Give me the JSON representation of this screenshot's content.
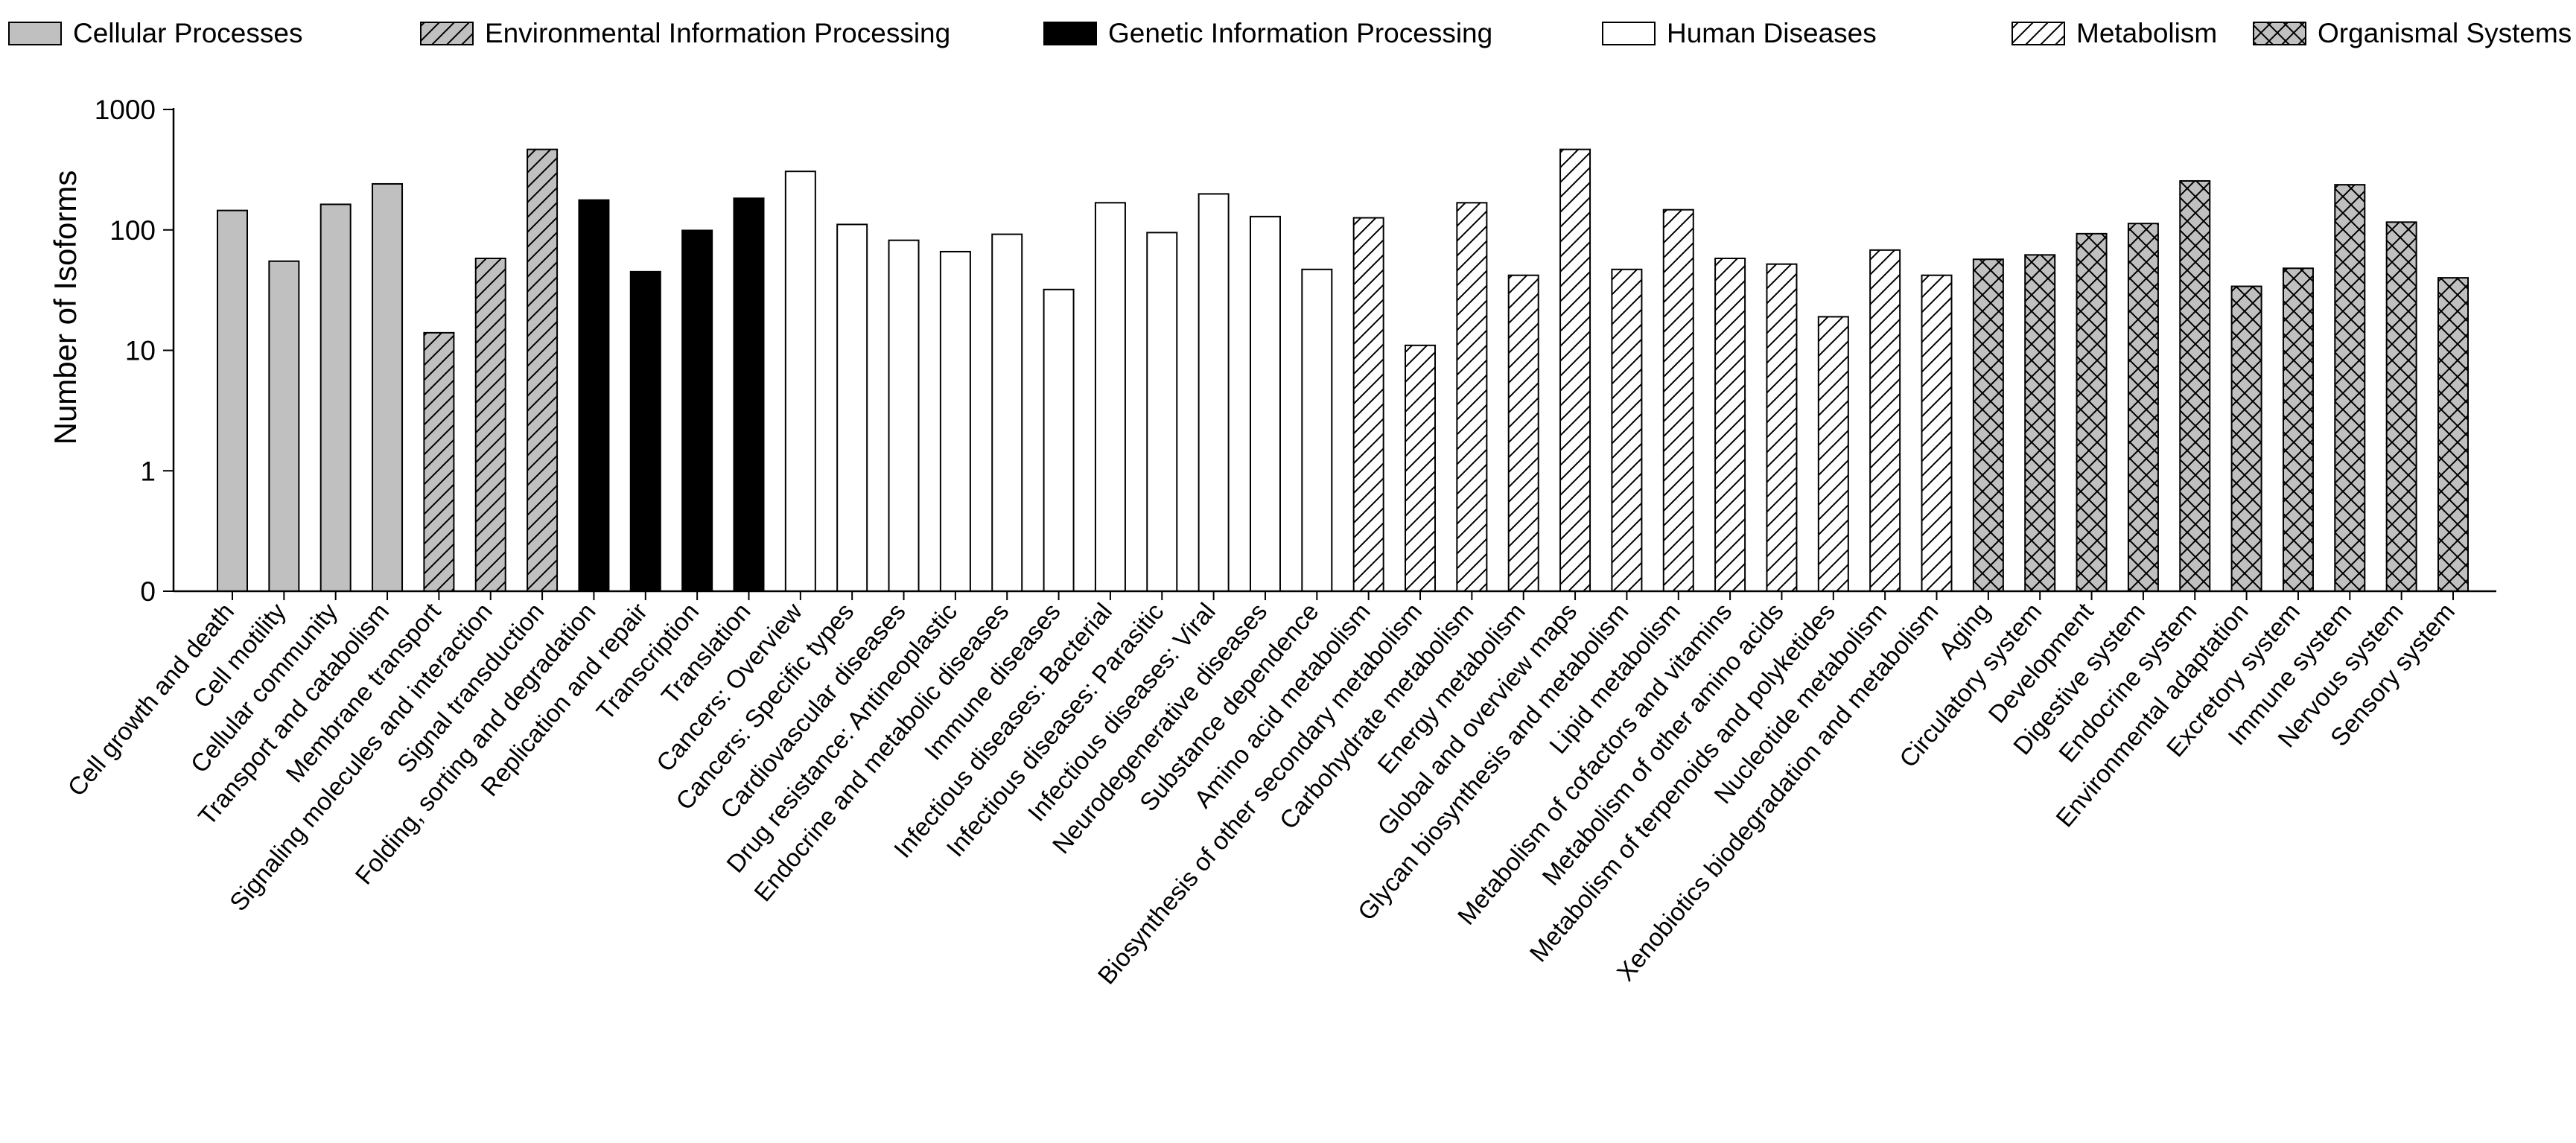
{
  "chart_data": {
    "type": "bar",
    "title": "",
    "xlabel": "",
    "ylabel": "Number of Isoforms",
    "yscale": "log",
    "ylim": [
      0,
      1000
    ],
    "yticks": [
      {
        "value": 1000,
        "label": "1000"
      },
      {
        "value": 100,
        "label": "100"
      },
      {
        "value": 10,
        "label": "10"
      },
      {
        "value": 1,
        "label": "1"
      },
      {
        "value": 0,
        "label": "0"
      }
    ],
    "legend_position": "top",
    "groups": [
      {
        "name": "Cellular Processes",
        "style": "solid",
        "color": "#c0c0c0"
      },
      {
        "name": "Environmental Information Processing",
        "style": "hatch",
        "color": "#c0c0c0"
      },
      {
        "name": "Genetic Information Processing",
        "style": "solid",
        "color": "#000000"
      },
      {
        "name": "Human Diseases",
        "style": "solid",
        "color": "#ffffff"
      },
      {
        "name": "Metabolism",
        "style": "hatch",
        "color": "#ffffff"
      },
      {
        "name": "Organismal Systems",
        "style": "crosshatch",
        "color": "#c0c0c0"
      }
    ],
    "categories": [
      {
        "label": "Cell growth and death",
        "group": 0,
        "value": 145
      },
      {
        "label": "Cell motility",
        "group": 0,
        "value": 55
      },
      {
        "label": "Cellular community",
        "group": 0,
        "value": 163
      },
      {
        "label": "Transport and catabolism",
        "group": 0,
        "value": 241
      },
      {
        "label": "Membrane transport",
        "group": 1,
        "value": 14
      },
      {
        "label": "Signaling molecules and interaction",
        "group": 1,
        "value": 58
      },
      {
        "label": "Signal transduction",
        "group": 1,
        "value": 466
      },
      {
        "label": "Folding, sorting and degradation",
        "group": 2,
        "value": 177
      },
      {
        "label": "Replication and repair",
        "group": 2,
        "value": 45
      },
      {
        "label": "Transcription",
        "group": 2,
        "value": 99
      },
      {
        "label": "Translation",
        "group": 2,
        "value": 183
      },
      {
        "label": "Cancers: Overview",
        "group": 3,
        "value": 306
      },
      {
        "label": "Cancers: Specific types",
        "group": 3,
        "value": 111
      },
      {
        "label": "Cardiovascular diseases",
        "group": 3,
        "value": 82
      },
      {
        "label": "Drug resistance: Antineoplastic",
        "group": 3,
        "value": 66
      },
      {
        "label": "Endocrine and metabolic diseases",
        "group": 3,
        "value": 92
      },
      {
        "label": "Immune diseases",
        "group": 3,
        "value": 32
      },
      {
        "label": "Infectious diseases: Bacterial",
        "group": 3,
        "value": 168
      },
      {
        "label": "Infectious diseases: Parasitic",
        "group": 3,
        "value": 95
      },
      {
        "label": "Infectious diseases: Viral",
        "group": 3,
        "value": 199
      },
      {
        "label": "Neurodegenerative diseases",
        "group": 3,
        "value": 129
      },
      {
        "label": "Substance dependence",
        "group": 3,
        "value": 47
      },
      {
        "label": "Amino acid metabolism",
        "group": 4,
        "value": 126
      },
      {
        "label": "Biosynthesis of other secondary metabolism",
        "group": 4,
        "value": 11
      },
      {
        "label": "Carbohydrate metabolism",
        "group": 4,
        "value": 168
      },
      {
        "label": "Energy metabolism",
        "group": 4,
        "value": 42
      },
      {
        "label": "Global and overview maps",
        "group": 4,
        "value": 466
      },
      {
        "label": "Glycan biosynthesis and metabolism",
        "group": 4,
        "value": 47
      },
      {
        "label": "Lipid metabolism",
        "group": 4,
        "value": 147
      },
      {
        "label": "Metabolism of cofactors and vitamins",
        "group": 4,
        "value": 58
      },
      {
        "label": "Metabolism of other amino acids",
        "group": 4,
        "value": 52
      },
      {
        "label": "Metabolism of terpenoids and polyketides",
        "group": 4,
        "value": 19
      },
      {
        "label": "Nucleotide metabolism",
        "group": 4,
        "value": 68
      },
      {
        "label": "Xenobiotics biodegradation and metabolism",
        "group": 4,
        "value": 42
      },
      {
        "label": "Aging",
        "group": 5,
        "value": 57
      },
      {
        "label": "Circulatory system",
        "group": 5,
        "value": 62
      },
      {
        "label": "Development",
        "group": 5,
        "value": 93
      },
      {
        "label": "Digestive system",
        "group": 5,
        "value": 113
      },
      {
        "label": "Endocrine system",
        "group": 5,
        "value": 255
      },
      {
        "label": "Environmental adaptation",
        "group": 5,
        "value": 34
      },
      {
        "label": "Excretory system",
        "group": 5,
        "value": 48
      },
      {
        "label": "Immune system",
        "group": 5,
        "value": 237
      },
      {
        "label": "Nervous system",
        "group": 5,
        "value": 116
      },
      {
        "label": "Sensory system",
        "group": 5,
        "value": 40
      }
    ]
  }
}
